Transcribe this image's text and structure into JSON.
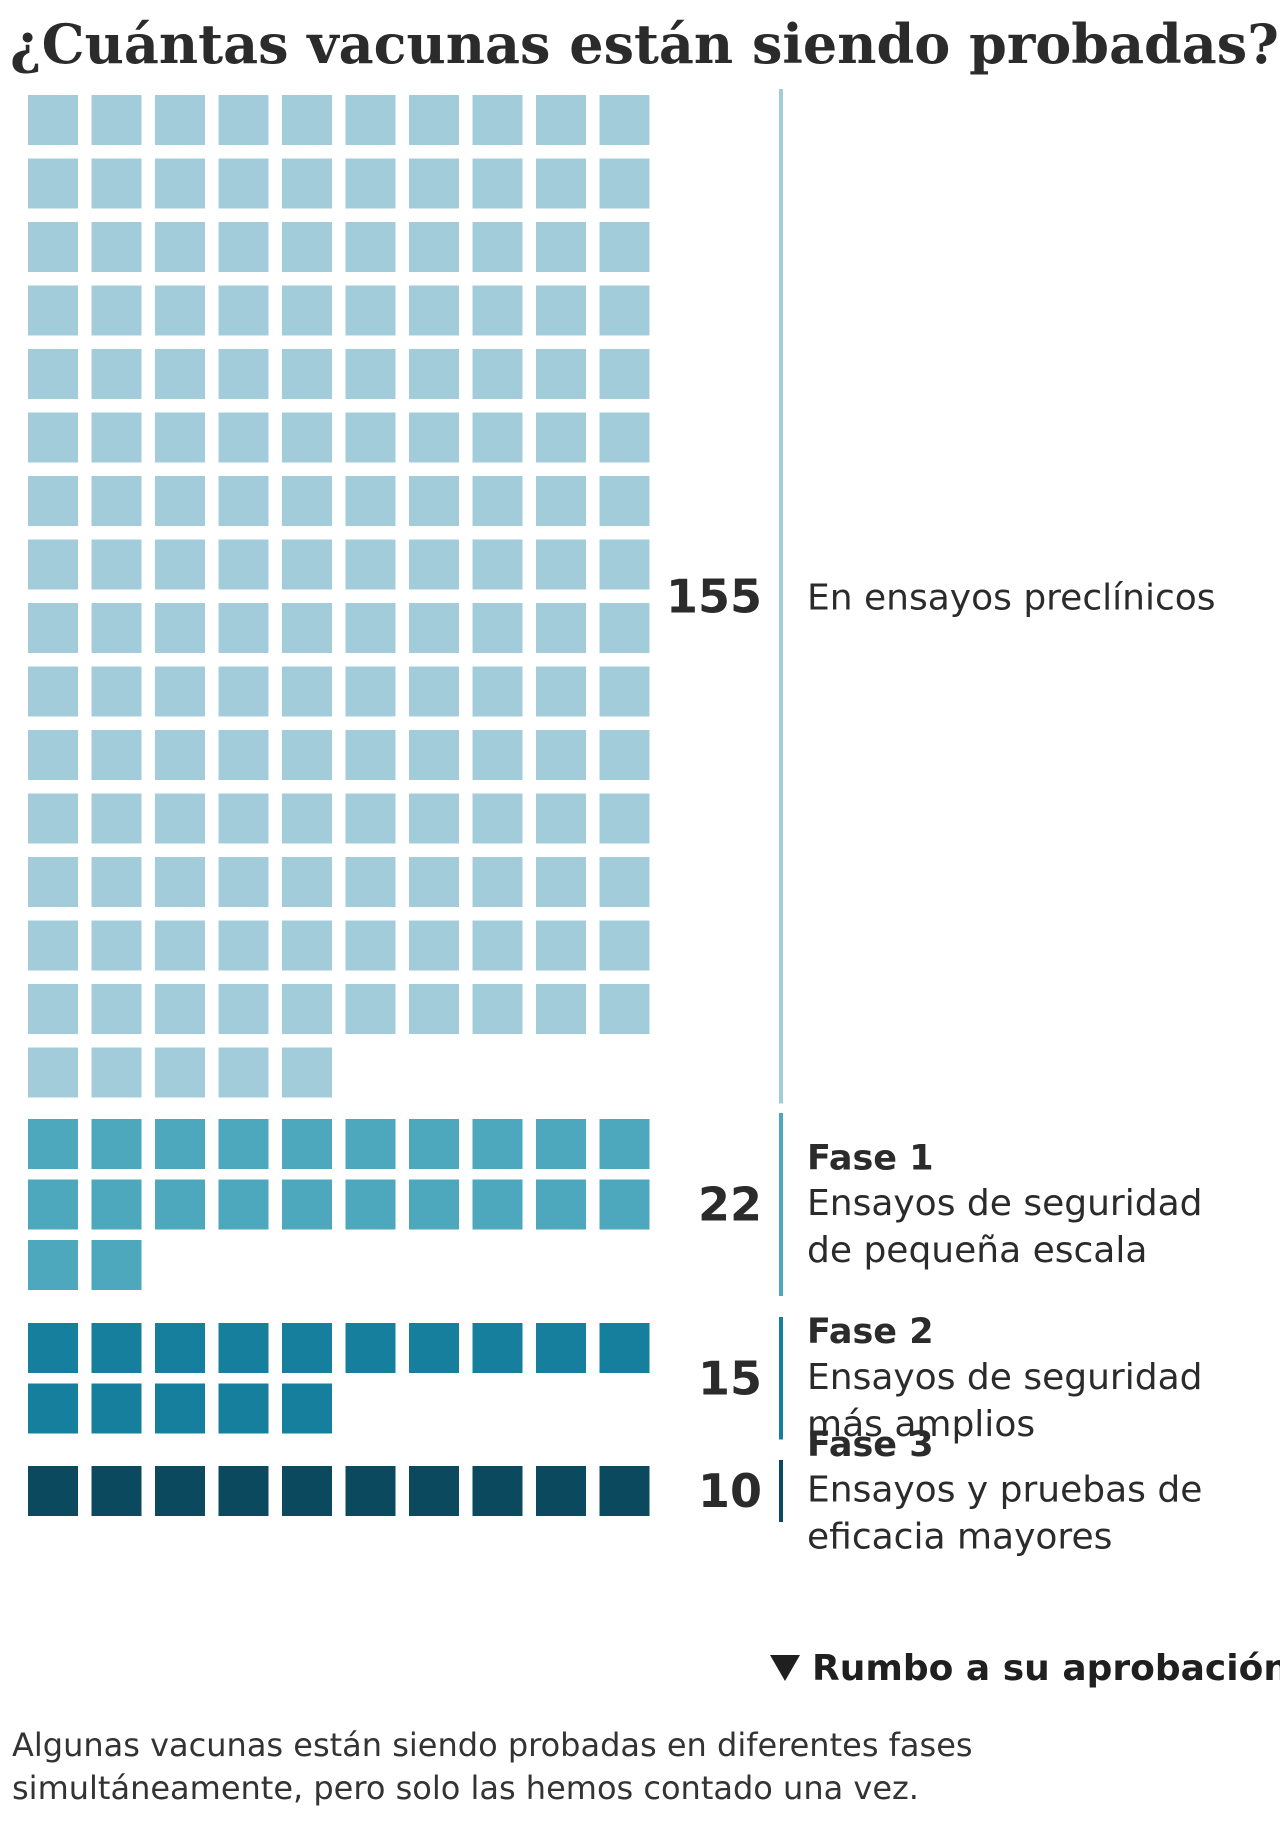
{
  "title": "¿Cuántas vacunas están siendo probadas?",
  "approval_label": "Rumbo a su aprobación",
  "footnote": "Algunas vacunas están siendo probadas en diferentes fases simultáneamente, pero solo las hemos contado una vez.",
  "chart_data": {
    "type": "waffle",
    "unit": "1 cuadrado = 1 vacuna",
    "columns_per_row": 10,
    "categories": [
      {
        "count": 155,
        "count_label": "155",
        "title": "",
        "description": [
          "En ensayos preclínicos"
        ],
        "color": "#a3ccdb"
      },
      {
        "count": 22,
        "count_label": "22",
        "title": "Fase 1",
        "description": [
          "Ensayos de seguridad",
          "de pequeña escala"
        ],
        "color": "#4ea8bd"
      },
      {
        "count": 15,
        "count_label": "15",
        "title": "Fase 2",
        "description": [
          "Ensayos de seguridad",
          "más amplios"
        ],
        "color": "#167f9e"
      },
      {
        "count": 10,
        "count_label": "10",
        "title": "Fase 3",
        "description": [
          "Ensayos y pruebas de",
          "eficacia mayores"
        ],
        "color": "#0b4a5e"
      }
    ]
  }
}
